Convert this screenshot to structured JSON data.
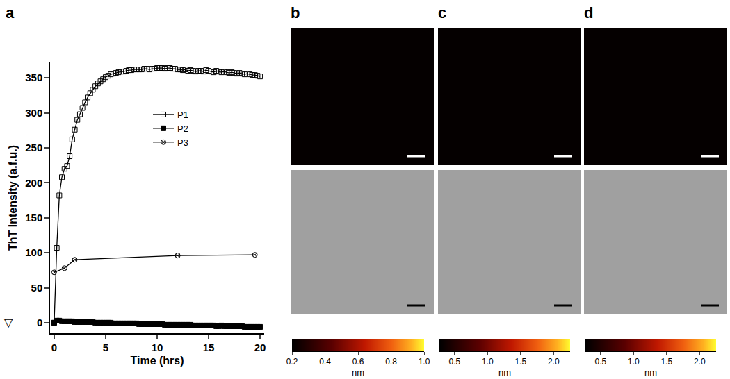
{
  "chart_data": [
    {
      "type": "line",
      "panel": "a",
      "xlabel": "Time (hrs)",
      "ylabel": "ThT Intensity (a.f.u.)",
      "xlim": [
        -0.4,
        20.4
      ],
      "xticks": [
        0,
        5,
        10,
        15,
        20
      ],
      "ylim": [
        -15,
        372
      ],
      "yticks": [
        0,
        50,
        100,
        150,
        200,
        250,
        300,
        350
      ],
      "grid": false,
      "legend": "center",
      "annotations": [
        {
          "text": "▽",
          "y": 0
        }
      ],
      "series": [
        {
          "name": "P1",
          "color": "#000000",
          "marker": "square-open",
          "line_style": "solid",
          "x": [
            0,
            0.25,
            0.5,
            0.75,
            1,
            1.25,
            1.5,
            1.75,
            2,
            2.25,
            2.5,
            2.75,
            3,
            3.25,
            3.5,
            3.75,
            4,
            4.25,
            4.5,
            4.75,
            5,
            5.25,
            5.5,
            5.75,
            6,
            6.25,
            6.5,
            6.75,
            7,
            7.25,
            7.5,
            7.75,
            8,
            8.25,
            8.5,
            8.75,
            9,
            9.25,
            9.5,
            9.75,
            10,
            10.25,
            10.5,
            10.75,
            11,
            11.25,
            11.5,
            11.75,
            12,
            12.25,
            12.5,
            12.75,
            13,
            13.25,
            13.5,
            13.75,
            14,
            14.25,
            14.5,
            14.75,
            15,
            15.25,
            15.5,
            15.75,
            16,
            16.25,
            16.5,
            16.75,
            17,
            17.25,
            17.5,
            17.75,
            18,
            18.25,
            18.5,
            18.75,
            19,
            19.25,
            19.5,
            19.75,
            20
          ],
          "values": [
            0,
            107,
            182,
            208,
            220,
            224,
            238,
            262,
            276,
            290,
            298,
            307,
            315,
            322,
            328,
            333,
            338,
            342,
            345,
            348,
            351,
            353,
            355,
            356,
            357,
            358,
            359,
            359,
            360,
            361,
            361,
            362,
            362,
            362,
            362,
            363,
            363,
            362,
            363,
            363,
            364,
            364,
            364,
            363,
            364,
            364,
            363,
            363,
            362,
            362,
            361,
            362,
            360,
            361,
            360,
            359,
            360,
            360,
            359,
            361,
            360,
            359,
            358,
            360,
            359,
            358,
            359,
            358,
            357,
            358,
            357,
            356,
            357,
            356,
            355,
            356,
            355,
            354,
            354,
            353,
            352
          ]
        },
        {
          "name": "P2",
          "color": "#000000",
          "marker": "square",
          "line_style": "solid",
          "x": [
            0,
            0.25,
            0.5,
            0.75,
            1,
            1.25,
            1.5,
            1.75,
            2,
            2.25,
            2.5,
            2.75,
            3,
            3.25,
            3.5,
            3.75,
            4,
            4.25,
            4.5,
            4.75,
            5,
            5.25,
            5.5,
            5.75,
            6,
            6.25,
            6.5,
            6.75,
            7,
            7.25,
            7.5,
            7.75,
            8,
            8.25,
            8.5,
            8.75,
            9,
            9.25,
            9.5,
            9.75,
            10,
            10.25,
            10.5,
            10.75,
            11,
            11.25,
            11.5,
            11.75,
            12,
            12.25,
            12.5,
            12.75,
            13,
            13.25,
            13.5,
            13.75,
            14,
            14.25,
            14.5,
            14.75,
            15,
            15.25,
            15.5,
            15.75,
            16,
            16.25,
            16.5,
            16.75,
            17,
            17.25,
            17.5,
            17.75,
            18,
            18.25,
            18.5,
            18.75,
            19,
            19.25,
            19.5,
            19.75,
            20
          ],
          "values": [
            0,
            3,
            3,
            2,
            2,
            2,
            2,
            2,
            1,
            1,
            1,
            1,
            1,
            1,
            1,
            1,
            0,
            0,
            0,
            0,
            0,
            0,
            0,
            -1,
            -1,
            -1,
            -1,
            -1,
            -1,
            -1,
            -1,
            -1,
            -1,
            -2,
            -2,
            -2,
            -2,
            -2,
            -2,
            -2,
            -2,
            -2,
            -2,
            -3,
            -3,
            -3,
            -3,
            -3,
            -3,
            -3,
            -3,
            -3,
            -3,
            -3,
            -4,
            -4,
            -4,
            -4,
            -4,
            -4,
            -4,
            -4,
            -4,
            -5,
            -5,
            -4,
            -5,
            -5,
            -5,
            -5,
            -5,
            -5,
            -5,
            -5,
            -6,
            -6,
            -6,
            -6,
            -6,
            -6,
            -6
          ]
        },
        {
          "name": "P3",
          "color": "#000000",
          "marker": "circle-x-open",
          "line_style": "solid",
          "x": [
            0,
            1,
            2,
            12,
            19.5
          ],
          "values": [
            72,
            78,
            90,
            96,
            97
          ]
        }
      ]
    },
    {
      "type": "colorbar",
      "panel": "b",
      "xlabel": "nm",
      "xlim": [
        0.2,
        1.0
      ],
      "xticks": [
        0.2,
        0.4,
        0.6,
        0.8,
        {
          "value": 1,
          "label": "1.0"
        }
      ]
    },
    {
      "type": "colorbar",
      "panel": "c",
      "xlabel": "nm",
      "xlim": [
        0.27,
        2.25
      ],
      "xticks": [
        0.5,
        {
          "value": 1,
          "label": "1.0"
        },
        1.5,
        {
          "value": 2,
          "label": "2.0"
        }
      ]
    },
    {
      "type": "colorbar",
      "panel": "d",
      "xlabel": "nm",
      "xlim": [
        0.27,
        2.25
      ],
      "xticks": [
        0.5,
        {
          "value": 1,
          "label": "1.0"
        },
        1.5,
        {
          "value": 2,
          "label": "2.0"
        }
      ]
    }
  ]
}
